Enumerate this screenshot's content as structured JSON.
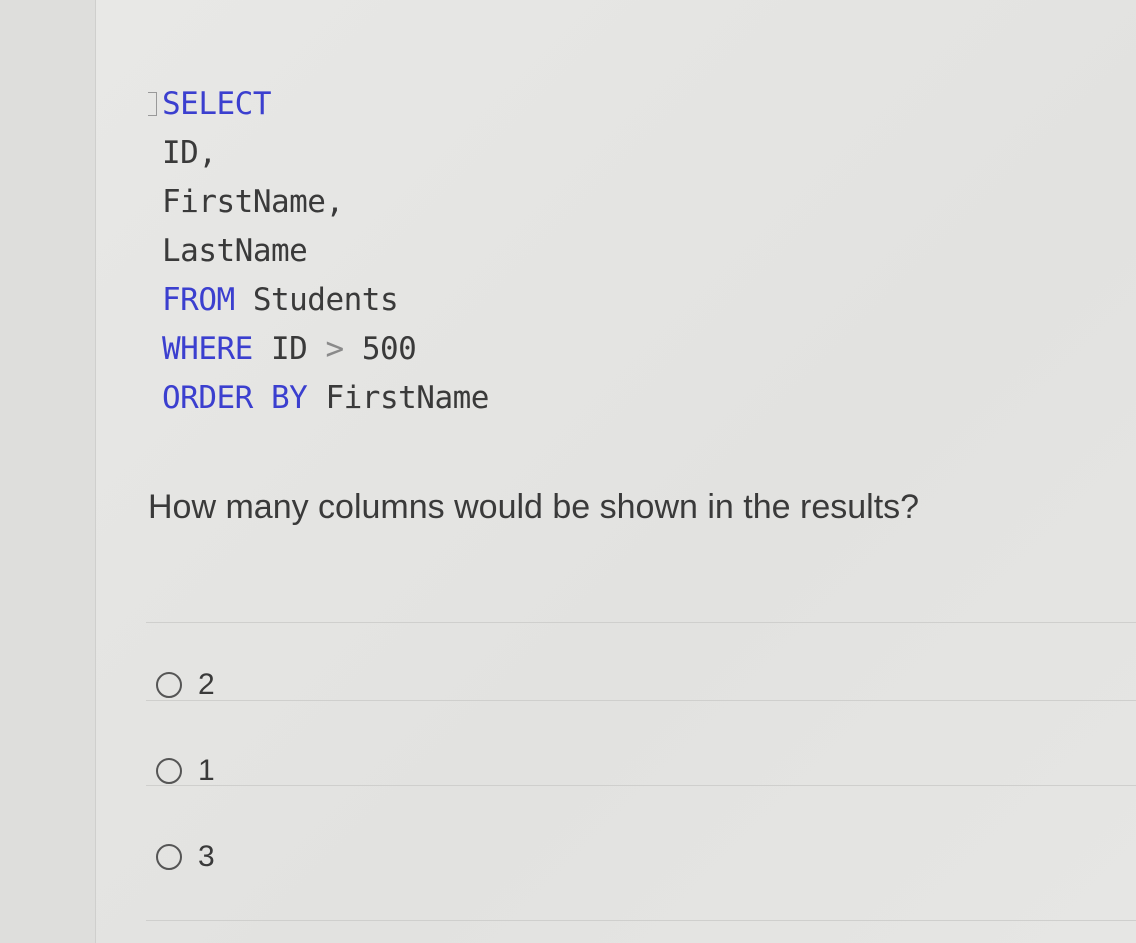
{
  "code": {
    "lines": [
      {
        "kw": "SELECT",
        "rest": ""
      },
      {
        "kw": "",
        "rest": "ID,"
      },
      {
        "kw": "",
        "rest": "FirstName,"
      },
      {
        "kw": "",
        "rest": "LastName"
      },
      {
        "kw": "FROM",
        "rest": " Students"
      },
      {
        "kw": "WHERE",
        "rest": " ID ",
        "op": ">",
        "tail": " 500"
      },
      {
        "kw": "ORDER BY",
        "rest": " FirstName"
      }
    ],
    "keyword_color": "#3b3fcf"
  },
  "question": "How many columns would be shown in the results?",
  "options": [
    {
      "label": "2"
    },
    {
      "label": "1"
    },
    {
      "label": "3"
    }
  ]
}
